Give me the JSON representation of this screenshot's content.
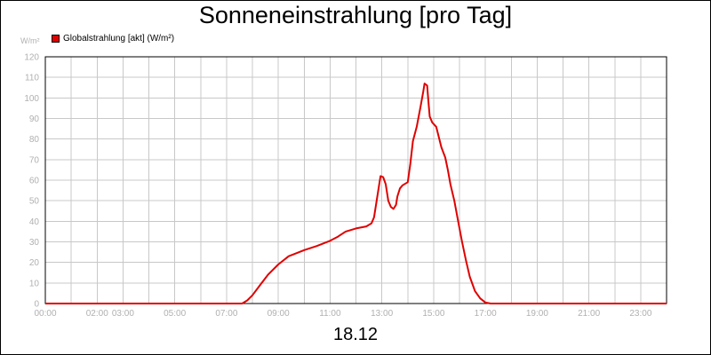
{
  "chart_data": {
    "type": "line",
    "title": "Sonneneinstrahlung [pro Tag]",
    "unit_label": "W/m²",
    "legend_label": "Globalstrahlung [akt] (W/m²)",
    "date_label": "18.12",
    "ylim": [
      0,
      120
    ],
    "y_ticks": [
      0,
      10,
      20,
      30,
      40,
      50,
      60,
      70,
      80,
      90,
      100,
      110,
      120
    ],
    "xlim": [
      0,
      24
    ],
    "x_tick_labels": [
      {
        "x": 0,
        "label": "00:00"
      },
      {
        "x": 2,
        "label": "02:00"
      },
      {
        "x": 3,
        "label": "03:00"
      },
      {
        "x": 5,
        "label": "05:00"
      },
      {
        "x": 7,
        "label": "07:00"
      },
      {
        "x": 9,
        "label": "09:00"
      },
      {
        "x": 11,
        "label": "11:00"
      },
      {
        "x": 13,
        "label": "13:00"
      },
      {
        "x": 15,
        "label": "15:00"
      },
      {
        "x": 17,
        "label": "17:00"
      },
      {
        "x": 19,
        "label": "19:00"
      },
      {
        "x": 21,
        "label": "21:00"
      },
      {
        "x": 23,
        "label": "23:00"
      }
    ],
    "grid": true,
    "series": [
      {
        "name": "Globalstrahlung [akt] (W/m²)",
        "color": "#e00000",
        "points": [
          [
            0,
            0
          ],
          [
            7.6,
            0
          ],
          [
            7.8,
            1.5
          ],
          [
            8.0,
            4
          ],
          [
            8.3,
            9
          ],
          [
            8.6,
            14
          ],
          [
            9.0,
            19
          ],
          [
            9.4,
            23
          ],
          [
            9.6,
            24
          ],
          [
            10.0,
            26
          ],
          [
            10.5,
            28
          ],
          [
            11.0,
            30.5
          ],
          [
            11.3,
            32.5
          ],
          [
            11.6,
            35
          ],
          [
            12.0,
            36.5
          ],
          [
            12.4,
            37.5
          ],
          [
            12.6,
            39
          ],
          [
            12.7,
            42
          ],
          [
            12.8,
            50
          ],
          [
            12.9,
            58
          ],
          [
            12.95,
            62
          ],
          [
            13.05,
            61.5
          ],
          [
            13.15,
            58
          ],
          [
            13.25,
            50
          ],
          [
            13.35,
            47
          ],
          [
            13.45,
            46
          ],
          [
            13.55,
            48
          ],
          [
            13.6,
            52
          ],
          [
            13.7,
            56
          ],
          [
            13.8,
            57.5
          ],
          [
            14.0,
            59
          ],
          [
            14.1,
            68
          ],
          [
            14.2,
            79
          ],
          [
            14.35,
            86
          ],
          [
            14.5,
            96
          ],
          [
            14.6,
            103
          ],
          [
            14.65,
            107
          ],
          [
            14.75,
            106
          ],
          [
            14.8,
            98
          ],
          [
            14.85,
            91
          ],
          [
            14.95,
            88
          ],
          [
            15.1,
            86
          ],
          [
            15.2,
            81
          ],
          [
            15.3,
            76
          ],
          [
            15.45,
            71
          ],
          [
            15.55,
            65
          ],
          [
            15.65,
            58
          ],
          [
            15.8,
            50
          ],
          [
            15.95,
            40
          ],
          [
            16.1,
            30
          ],
          [
            16.25,
            21
          ],
          [
            16.4,
            13
          ],
          [
            16.6,
            6
          ],
          [
            16.8,
            2.5
          ],
          [
            17.0,
            0.5
          ],
          [
            17.2,
            0
          ],
          [
            24,
            0
          ]
        ]
      }
    ]
  }
}
